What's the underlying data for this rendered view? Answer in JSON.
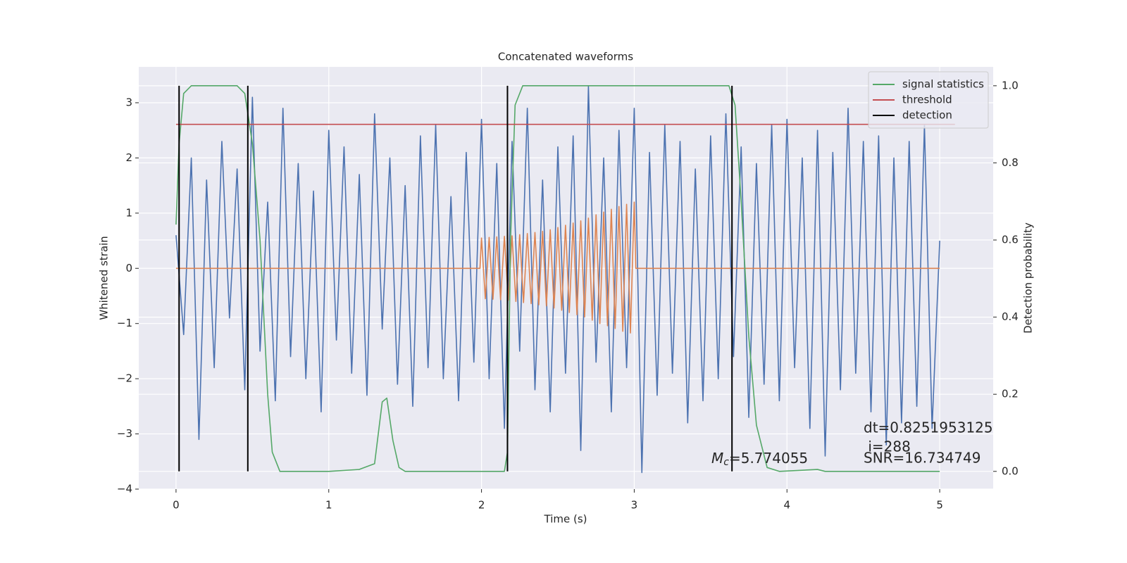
{
  "chart_data": {
    "type": "line",
    "title": "Concatenated waveforms",
    "xlabel": "Time (s)",
    "ylabel": "Whitened strain",
    "y2label": "Detection probability",
    "xlim": [
      -0.244,
      5.35
    ],
    "ylim": [
      -4,
      3.65
    ],
    "y2lim": [
      -0.046,
      1.049
    ],
    "xticks": [
      0,
      1,
      2,
      3,
      4,
      5
    ],
    "yticks": [
      {
        "value": -4,
        "label": "−4"
      },
      {
        "value": -3,
        "label": "−3"
      },
      {
        "value": -2,
        "label": "−2"
      },
      {
        "value": -1,
        "label": "−1"
      },
      0,
      1,
      2,
      3
    ],
    "y2ticks": [
      {
        "value": 0,
        "label": "0.0"
      },
      0.2,
      0.4,
      0.6,
      0.8,
      {
        "value": 1,
        "label": "1.0"
      }
    ],
    "grid": true,
    "legend": "upper right",
    "series": [
      {
        "color": "#4c72b0",
        "x": [
          0,
          0.05,
          0.1,
          0.15,
          0.2,
          0.25,
          0.3,
          0.35,
          0.4,
          0.45,
          0.5,
          0.55,
          0.6,
          0.65,
          0.7,
          0.75,
          0.8,
          0.85,
          0.9,
          0.95,
          1,
          1.05,
          1.1,
          1.15,
          1.2,
          1.25,
          1.3,
          1.35,
          1.4,
          1.45,
          1.5,
          1.55,
          1.6,
          1.65,
          1.7,
          1.75,
          1.8,
          1.85,
          1.9,
          1.95,
          2,
          2.05,
          2.1,
          2.15,
          2.2,
          2.25,
          2.3,
          2.35,
          2.4,
          2.45,
          2.5,
          2.55,
          2.6,
          2.65,
          2.7,
          2.75,
          2.8,
          2.85,
          2.9,
          2.95,
          3,
          3.05,
          3.1,
          3.15,
          3.2,
          3.25,
          3.3,
          3.35,
          3.4,
          3.45,
          3.5,
          3.55,
          3.6,
          3.65,
          3.7,
          3.75,
          3.8,
          3.85,
          3.9,
          3.95,
          4,
          4.05,
          4.1,
          4.15,
          4.2,
          4.25,
          4.3,
          4.35,
          4.4,
          4.45,
          4.5,
          4.55,
          4.6,
          4.65,
          4.7,
          4.75,
          4.8,
          4.85,
          4.9,
          4.95,
          5
        ],
        "values": [
          0.6,
          -1.2,
          2.0,
          -3.1,
          1.6,
          -1.8,
          2.3,
          -0.9,
          1.8,
          -2.2,
          3.1,
          -1.5,
          1.2,
          -2.4,
          2.9,
          -1.6,
          1.9,
          -2.0,
          1.4,
          -2.6,
          2.5,
          -1.3,
          2.2,
          -1.9,
          1.7,
          -2.3,
          2.8,
          -1.1,
          2.0,
          -2.1,
          1.5,
          -2.5,
          2.4,
          -1.8,
          2.6,
          -2.0,
          1.3,
          -2.4,
          2.1,
          -1.7,
          2.7,
          -2.0,
          1.9,
          -2.9,
          2.3,
          -1.5,
          2.9,
          -2.2,
          1.6,
          -2.6,
          2.2,
          -1.9,
          2.4,
          -3.3,
          3.3,
          -1.7,
          2.0,
          -2.6,
          2.5,
          -1.8,
          2.9,
          -3.7,
          2.1,
          -2.3,
          2.6,
          -1.9,
          2.3,
          -2.8,
          1.8,
          -2.4,
          2.4,
          -2.0,
          2.8,
          -1.6,
          2.2,
          -2.7,
          1.9,
          -2.1,
          2.6,
          -2.4,
          2.7,
          -1.8,
          2.0,
          -2.9,
          2.5,
          -3.4,
          2.1,
          -2.2,
          2.9,
          -1.9,
          2.3,
          -2.6,
          2.4,
          -3.2,
          2.0,
          -2.8,
          2.3,
          -2.5,
          2.6,
          -2.9,
          0.5
        ]
      },
      {
        "color": "#dd8452",
        "x": [
          0,
          1.99,
          2,
          2.025,
          2.05,
          2.075,
          2.1,
          2.125,
          2.15,
          2.175,
          2.2,
          2.225,
          2.25,
          2.275,
          2.3,
          2.325,
          2.35,
          2.375,
          2.4,
          2.425,
          2.45,
          2.475,
          2.5,
          2.525,
          2.55,
          2.575,
          2.6,
          2.625,
          2.65,
          2.675,
          2.7,
          2.725,
          2.75,
          2.775,
          2.8,
          2.825,
          2.85,
          2.875,
          2.9,
          2.925,
          2.95,
          2.975,
          3,
          3.01,
          5
        ],
        "values": [
          0,
          0,
          0.55,
          -0.55,
          0.56,
          -0.56,
          0.57,
          -0.57,
          0.58,
          -0.58,
          0.59,
          -0.6,
          0.61,
          -0.62,
          0.63,
          -0.64,
          0.65,
          -0.66,
          0.67,
          -0.68,
          0.7,
          -0.72,
          0.74,
          -0.76,
          0.78,
          -0.8,
          0.82,
          -0.84,
          0.86,
          -0.88,
          0.91,
          -0.94,
          0.97,
          -1.0,
          1.02,
          -1.04,
          1.07,
          -1.09,
          1.12,
          -1.14,
          1.16,
          -1.17,
          1.2,
          0,
          0
        ]
      },
      {
        "name": "signal statistics",
        "color": "#55a868",
        "axis": "y2",
        "x": [
          0,
          0.02,
          0.05,
          0.1,
          0.4,
          0.45,
          0.5,
          0.55,
          0.6,
          0.63,
          0.68,
          1,
          1.2,
          1.3,
          1.35,
          1.38,
          1.42,
          1.46,
          1.5,
          2.15,
          2.17,
          2.19,
          2.22,
          2.27,
          3.62,
          3.66,
          3.7,
          3.75,
          3.8,
          3.87,
          3.95,
          4.2,
          4.25,
          5
        ],
        "values": [
          0.64,
          0.85,
          0.98,
          1,
          1,
          0.98,
          0.85,
          0.6,
          0.2,
          0.05,
          0,
          0,
          0.005,
          0.02,
          0.18,
          0.19,
          0.08,
          0.01,
          0,
          0,
          0.05,
          0.6,
          0.95,
          1,
          1,
          0.95,
          0.7,
          0.35,
          0.12,
          0.01,
          0,
          0.005,
          0,
          0
        ]
      },
      {
        "name": "threshold",
        "color": "#c44e52",
        "axis": "y2",
        "x": [
          0,
          5.1
        ],
        "values": [
          0.9,
          0.9
        ]
      },
      {
        "name": "detection",
        "color": "#000000",
        "axis": "y2",
        "x": [
          0.02,
          0.02,
          null,
          0.47,
          0.47,
          null,
          2.17,
          2.17,
          null,
          3.64,
          3.64
        ],
        "values": [
          0,
          1,
          null,
          1,
          0,
          null,
          0,
          1,
          null,
          1,
          0
        ]
      }
    ],
    "annotations": [
      "dt=0.8251953125",
      " i=288",
      "SNR=16.734749"
    ],
    "mass_annotation": {
      "symbol": "M",
      "subscript": "c",
      "text": "=5.774055"
    }
  }
}
